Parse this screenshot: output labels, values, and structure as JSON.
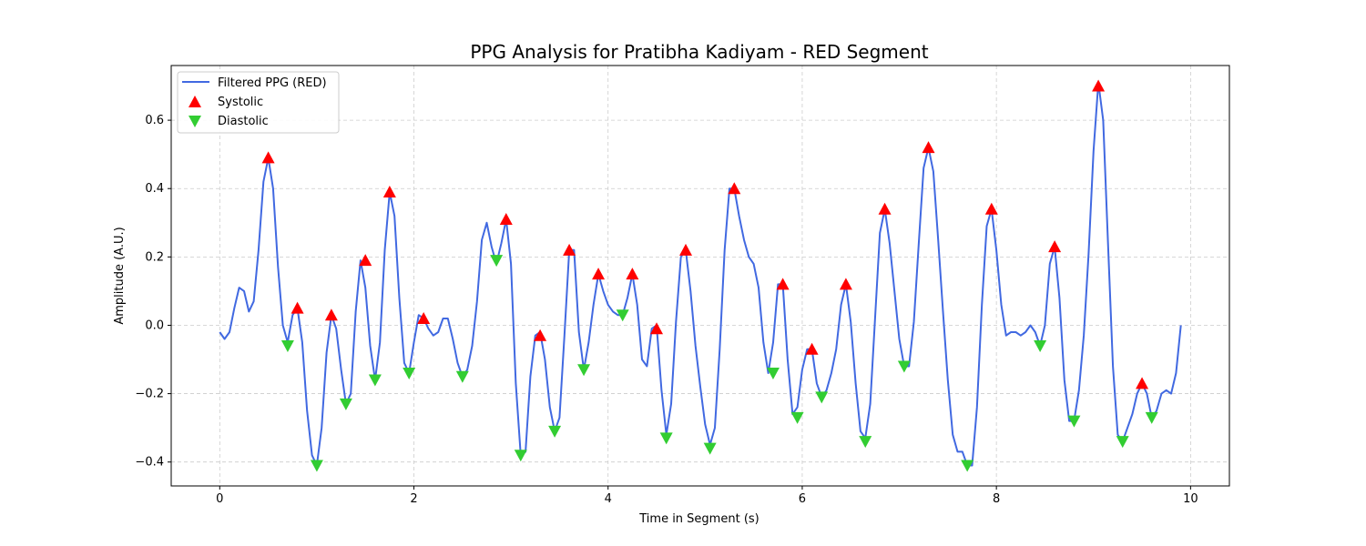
{
  "chart_data": {
    "type": "line",
    "title": "PPG Analysis for Pratibha Kadiyam - RED Segment",
    "xlabel": "Time in Segment (s)",
    "ylabel": "Amplitude (A.U.)",
    "xlim": [
      -0.5,
      10.4
    ],
    "ylim": [
      -0.47,
      0.76
    ],
    "x_ticks": [
      0,
      2,
      4,
      6,
      8,
      10
    ],
    "y_ticks": [
      -0.4,
      -0.2,
      0.0,
      0.2,
      0.4,
      0.6
    ],
    "x_tick_labels": [
      "0",
      "2",
      "4",
      "6",
      "8",
      "10"
    ],
    "y_tick_labels": [
      "−0.4",
      "−0.2",
      "0.0",
      "0.2",
      "0.4",
      "0.6"
    ],
    "grid": true,
    "legend_position": "top-left",
    "colors": {
      "line": "#4169e1",
      "systolic": "#ff0000",
      "diastolic": "#32cd32",
      "grid": "#cccccc"
    },
    "series": [
      {
        "name": "Filtered PPG (RED)",
        "kind": "line",
        "x": [
          0.0,
          0.05,
          0.1,
          0.15,
          0.2,
          0.25,
          0.3,
          0.35,
          0.4,
          0.45,
          0.5,
          0.55,
          0.6,
          0.65,
          0.7,
          0.75,
          0.8,
          0.85,
          0.9,
          0.95,
          1.0,
          1.05,
          1.1,
          1.15,
          1.2,
          1.25,
          1.3,
          1.35,
          1.4,
          1.45,
          1.5,
          1.55,
          1.6,
          1.65,
          1.7,
          1.75,
          1.8,
          1.85,
          1.9,
          1.95,
          2.0,
          2.05,
          2.1,
          2.15,
          2.2,
          2.25,
          2.3,
          2.35,
          2.4,
          2.45,
          2.5,
          2.55,
          2.6,
          2.65,
          2.7,
          2.75,
          2.8,
          2.85,
          2.9,
          2.95,
          3.0,
          3.05,
          3.1,
          3.15,
          3.2,
          3.25,
          3.3,
          3.35,
          3.4,
          3.45,
          3.5,
          3.55,
          3.6,
          3.65,
          3.7,
          3.75,
          3.8,
          3.85,
          3.9,
          3.95,
          4.0,
          4.05,
          4.1,
          4.15,
          4.2,
          4.25,
          4.3,
          4.35,
          4.4,
          4.45,
          4.5,
          4.55,
          4.6,
          4.65,
          4.7,
          4.75,
          4.8,
          4.85,
          4.9,
          4.95,
          5.0,
          5.05,
          5.1,
          5.15,
          5.2,
          5.25,
          5.3,
          5.35,
          5.4,
          5.45,
          5.5,
          5.55,
          5.6,
          5.65,
          5.7,
          5.75,
          5.8,
          5.85,
          5.9,
          5.95,
          6.0,
          6.05,
          6.1,
          6.15,
          6.2,
          6.25,
          6.3,
          6.35,
          6.4,
          6.45,
          6.5,
          6.55,
          6.6,
          6.65,
          6.7,
          6.75,
          6.8,
          6.85,
          6.9,
          6.95,
          7.0,
          7.05,
          7.1,
          7.15,
          7.2,
          7.25,
          7.3,
          7.35,
          7.4,
          7.45,
          7.5,
          7.55,
          7.6,
          7.65,
          7.7,
          7.75,
          7.8,
          7.85,
          7.9,
          7.95,
          8.0,
          8.05,
          8.1,
          8.15,
          8.2,
          8.25,
          8.3,
          8.35,
          8.4,
          8.45,
          8.5,
          8.55,
          8.6,
          8.65,
          8.7,
          8.75,
          8.8,
          8.85,
          8.9,
          8.95,
          9.0,
          9.05,
          9.1,
          9.15,
          9.2,
          9.25,
          9.3,
          9.35,
          9.4,
          9.45,
          9.5,
          9.55,
          9.6,
          9.65,
          9.7,
          9.75,
          9.8,
          9.85,
          9.9
        ],
        "y": [
          -0.02,
          -0.04,
          -0.02,
          0.05,
          0.11,
          0.1,
          0.04,
          0.07,
          0.22,
          0.42,
          0.49,
          0.4,
          0.17,
          0.0,
          -0.05,
          0.03,
          0.05,
          -0.05,
          -0.25,
          -0.38,
          -0.41,
          -0.3,
          -0.08,
          0.03,
          -0.01,
          -0.13,
          -0.23,
          -0.2,
          0.04,
          0.19,
          0.11,
          -0.06,
          -0.16,
          -0.05,
          0.22,
          0.39,
          0.32,
          0.08,
          -0.11,
          -0.14,
          -0.05,
          0.03,
          0.02,
          -0.01,
          -0.03,
          -0.02,
          0.02,
          0.02,
          -0.04,
          -0.11,
          -0.15,
          -0.13,
          -0.06,
          0.07,
          0.25,
          0.3,
          0.23,
          0.18,
          0.24,
          0.31,
          0.18,
          -0.17,
          -0.38,
          -0.37,
          -0.15,
          -0.03,
          -0.02,
          -0.1,
          -0.24,
          -0.31,
          -0.27,
          -0.03,
          0.22,
          0.22,
          -0.02,
          -0.13,
          -0.05,
          0.06,
          0.15,
          0.1,
          0.06,
          0.04,
          0.03,
          0.03,
          0.08,
          0.15,
          0.06,
          -0.1,
          -0.12,
          -0.01,
          0.0,
          -0.19,
          -0.32,
          -0.23,
          0.01,
          0.2,
          0.22,
          0.1,
          -0.06,
          -0.18,
          -0.29,
          -0.35,
          -0.3,
          -0.07,
          0.22,
          0.4,
          0.4,
          0.32,
          0.25,
          0.2,
          0.18,
          0.11,
          -0.05,
          -0.14,
          -0.05,
          0.12,
          0.12,
          -0.1,
          -0.26,
          -0.24,
          -0.13,
          -0.07,
          -0.07,
          -0.17,
          -0.21,
          -0.19,
          -0.14,
          -0.07,
          0.06,
          0.12,
          0.01,
          -0.17,
          -0.31,
          -0.33,
          -0.23,
          0.02,
          0.27,
          0.34,
          0.24,
          0.1,
          -0.04,
          -0.12,
          -0.12,
          0.01,
          0.24,
          0.46,
          0.52,
          0.45,
          0.25,
          0.04,
          -0.16,
          -0.32,
          -0.37,
          -0.37,
          -0.41,
          -0.41,
          -0.24,
          0.06,
          0.29,
          0.34,
          0.22,
          0.06,
          -0.03,
          -0.02,
          -0.02,
          -0.03,
          -0.02,
          0.0,
          -0.02,
          -0.06,
          0.0,
          0.18,
          0.23,
          0.08,
          -0.16,
          -0.28,
          -0.28,
          -0.19,
          -0.03,
          0.21,
          0.51,
          0.71,
          0.6,
          0.24,
          -0.12,
          -0.32,
          -0.34,
          -0.3,
          -0.26,
          -0.2,
          -0.17,
          -0.2,
          -0.27,
          -0.25,
          -0.2,
          -0.19,
          -0.2,
          -0.14,
          0.0
        ]
      },
      {
        "name": "Systolic",
        "kind": "marker-up",
        "x": [
          0.5,
          0.8,
          1.15,
          1.5,
          1.75,
          2.1,
          2.95,
          3.3,
          3.6,
          3.9,
          4.25,
          4.5,
          4.8,
          5.3,
          5.8,
          6.1,
          6.45,
          6.85,
          7.3,
          7.95,
          8.6,
          9.05,
          9.5
        ],
        "y": [
          0.49,
          0.05,
          0.03,
          0.19,
          0.39,
          0.02,
          0.31,
          -0.03,
          0.22,
          0.15,
          0.15,
          -0.01,
          0.22,
          0.4,
          0.12,
          -0.07,
          0.12,
          0.34,
          0.52,
          0.34,
          0.23,
          0.7,
          -0.17
        ]
      },
      {
        "name": "Diastolic",
        "kind": "marker-down",
        "x": [
          0.7,
          1.0,
          1.3,
          1.6,
          1.95,
          2.5,
          2.85,
          3.1,
          3.45,
          3.75,
          4.15,
          4.6,
          5.05,
          5.7,
          5.95,
          6.2,
          6.65,
          7.05,
          7.7,
          8.45,
          8.8,
          9.3,
          9.6
        ],
        "y": [
          -0.06,
          -0.41,
          -0.23,
          -0.16,
          -0.14,
          -0.15,
          0.19,
          -0.38,
          -0.31,
          -0.13,
          0.03,
          -0.33,
          -0.36,
          -0.14,
          -0.27,
          -0.21,
          -0.34,
          -0.12,
          -0.41,
          -0.06,
          -0.28,
          -0.34,
          -0.27
        ]
      }
    ]
  }
}
